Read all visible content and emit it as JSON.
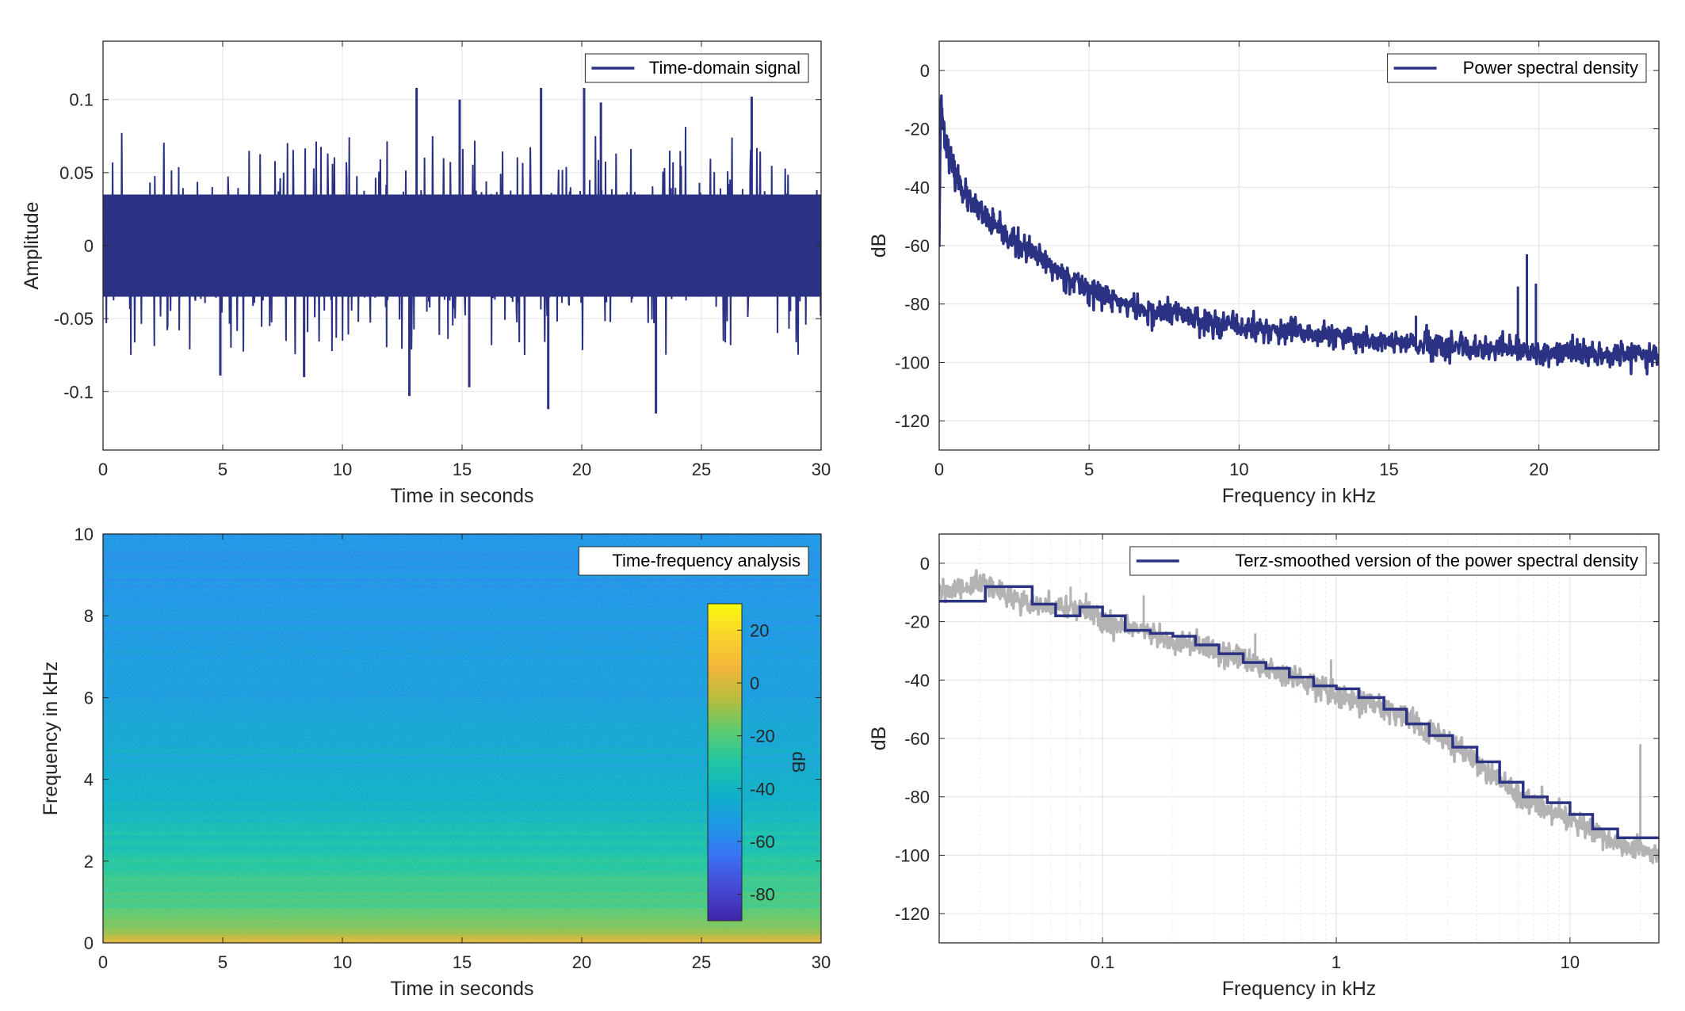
{
  "chart_data": [
    {
      "id": "time-domain",
      "type": "line",
      "xlabel": "Time in seconds",
      "ylabel": "Amplitude",
      "xlim": [
        0,
        30
      ],
      "ylim": [
        -0.14,
        0.14
      ],
      "xticks": [
        0,
        5,
        10,
        15,
        20,
        25,
        30
      ],
      "xtick_labels": [
        "0",
        "5",
        "10",
        "15",
        "20",
        "25",
        "30"
      ],
      "yticks": [
        -0.1,
        -0.05,
        0,
        0.05,
        0.1
      ],
      "ytick_labels": [
        "-0.1",
        "-0.05",
        "0",
        "0.05",
        "0.1"
      ],
      "grid": true,
      "legend": {
        "label": "Time-domain signal",
        "position": "top-right"
      },
      "color": "#2b3183",
      "signal": {
        "envelope": 0.035,
        "spikes": [
          {
            "x": 13.1,
            "y": 0.108
          },
          {
            "x": 14.9,
            "y": 0.1
          },
          {
            "x": 18.3,
            "y": 0.108
          },
          {
            "x": 20.1,
            "y": 0.108
          },
          {
            "x": 27.1,
            "y": 0.102
          },
          {
            "x": 20.8,
            "y": 0.098
          },
          {
            "x": 23.1,
            "y": -0.115
          },
          {
            "x": 18.6,
            "y": -0.112
          },
          {
            "x": 12.8,
            "y": -0.103
          },
          {
            "x": 15.3,
            "y": -0.097
          },
          {
            "x": 4.9,
            "y": -0.089
          },
          {
            "x": 8.4,
            "y": -0.09
          }
        ]
      }
    },
    {
      "id": "psd",
      "type": "line",
      "xlabel": "Frequency in kHz",
      "ylabel": "dB",
      "xlim": [
        0,
        24
      ],
      "ylim": [
        -130,
        10
      ],
      "xticks": [
        0,
        5,
        10,
        15,
        20
      ],
      "xtick_labels": [
        "0",
        "5",
        "10",
        "15",
        "20"
      ],
      "yticks": [
        -120,
        -100,
        -80,
        -60,
        -40,
        -20,
        0
      ],
      "ytick_labels": [
        "-120",
        "-100",
        "-80",
        "-60",
        "-40",
        "-20",
        "0"
      ],
      "grid": true,
      "legend": {
        "label": "Power spectral density",
        "position": "top-right"
      },
      "color": "#2b3183",
      "curve": {
        "x": [
          0,
          0.05,
          0.15,
          0.3,
          0.5,
          1,
          2,
          3,
          4,
          5,
          6,
          7,
          8,
          9,
          10,
          12,
          14,
          16,
          18,
          19,
          20,
          22,
          24
        ],
        "y": [
          -58,
          -10,
          -20,
          -28,
          -35,
          -45,
          -55,
          -62,
          -69,
          -75,
          -79,
          -83,
          -83,
          -86,
          -88,
          -90,
          -92,
          -94,
          -96,
          -95,
          -97,
          -97,
          -97
        ]
      },
      "peaks": [
        {
          "x": 19.6,
          "y": -63
        },
        {
          "x": 19.3,
          "y": -74
        },
        {
          "x": 19.9,
          "y": -73
        },
        {
          "x": 15.9,
          "y": -84
        }
      ]
    },
    {
      "id": "spectrogram",
      "type": "heatmap",
      "xlabel": "Time in seconds",
      "ylabel": "Frequency in kHz",
      "xlim": [
        0,
        30
      ],
      "ylim": [
        0,
        10
      ],
      "xticks": [
        0,
        5,
        10,
        15,
        20,
        25,
        30
      ],
      "xtick_labels": [
        "0",
        "5",
        "10",
        "15",
        "20",
        "25",
        "30"
      ],
      "yticks": [
        0,
        2,
        4,
        6,
        8,
        10
      ],
      "ytick_labels": [
        "0",
        "2",
        "4",
        "6",
        "8",
        "10"
      ],
      "legend": {
        "label": "Time-frequency analysis",
        "position": "top-right"
      },
      "colorbar": {
        "label": "dB",
        "range": [
          -90,
          30
        ],
        "ticks": [
          -80,
          -60,
          -40,
          -20,
          0,
          20
        ],
        "tick_labels": [
          "-80",
          "-60",
          "-40",
          "-20",
          "0",
          "20"
        ],
        "colors": [
          "#3e26a8",
          "#4648d2",
          "#3a71f3",
          "#1e97e6",
          "#0fb1c7",
          "#1fc7a3",
          "#5ecb6f",
          "#b8bc3e",
          "#f3b63b",
          "#f9d52b",
          "#f9fb0e"
        ]
      },
      "level_by_frequency": {
        "freq_khz": [
          0,
          0.3,
          1,
          2,
          3,
          4,
          6,
          8,
          10
        ],
        "db": [
          5,
          -12,
          -22,
          -30,
          -38,
          -44,
          -50,
          -53,
          -56
        ]
      }
    },
    {
      "id": "terz",
      "type": "line",
      "xlabel": "Frequency in kHz",
      "ylabel": "dB",
      "xscale": "log",
      "xlim": [
        0.02,
        24
      ],
      "ylim": [
        -130,
        10
      ],
      "xticks": [
        0.1,
        1,
        10
      ],
      "xtick_labels": [
        "0.1",
        "1",
        "10"
      ],
      "yticks": [
        -120,
        -100,
        -80,
        -60,
        -40,
        -20,
        0
      ],
      "ytick_labels": [
        "-120",
        "-100",
        "-80",
        "-60",
        "-40",
        "-20",
        "0"
      ],
      "grid": true,
      "legend": {
        "label": "Terz-smoothed version of the power spectral density",
        "position": "top-right"
      },
      "series": [
        {
          "name": "Terz-smoothed version of the power spectral density",
          "color": "#2b3183",
          "step_x": [
            0.02,
            0.025,
            0.0315,
            0.04,
            0.05,
            0.063,
            0.08,
            0.1,
            0.125,
            0.16,
            0.2,
            0.25,
            0.315,
            0.4,
            0.5,
            0.63,
            0.8,
            1,
            1.25,
            1.6,
            2,
            2.5,
            3.15,
            4,
            5,
            6.3,
            8,
            10,
            12.5,
            16,
            20,
            24
          ],
          "step_y": [
            -13,
            -13,
            -8,
            -8,
            -14,
            -18,
            -15,
            -18,
            -23,
            -24,
            -25,
            -28,
            -31,
            -34,
            -36,
            -39,
            -42,
            -43,
            -46,
            -50,
            -55,
            -59,
            -63,
            -68,
            -75,
            -80,
            -82,
            -86,
            -91,
            -94,
            -94,
            -94
          ]
        },
        {
          "color": "#b3b3b3",
          "curve_x": [
            0.02,
            0.03,
            0.05,
            0.08,
            0.1,
            0.2,
            0.3,
            0.5,
            0.8,
            1,
            1.5,
            2,
            3,
            4,
            5,
            6,
            8,
            10,
            14,
            18,
            20,
            24
          ],
          "curve_y": [
            -10,
            -7,
            -15,
            -15,
            -20,
            -27,
            -30,
            -36,
            -41,
            -45,
            -49,
            -53,
            -61,
            -68,
            -75,
            -79,
            -84,
            -88,
            -93,
            -98,
            -97,
            -100
          ],
          "peaks": [
            {
              "x": 0.04,
              "y": -11
            },
            {
              "x": 0.073,
              "y": -8
            },
            {
              "x": 0.085,
              "y": -10
            },
            {
              "x": 0.15,
              "y": -11
            },
            {
              "x": 0.45,
              "y": -24
            },
            {
              "x": 0.95,
              "y": -33
            },
            {
              "x": 20,
              "y": -62
            }
          ]
        }
      ]
    }
  ]
}
